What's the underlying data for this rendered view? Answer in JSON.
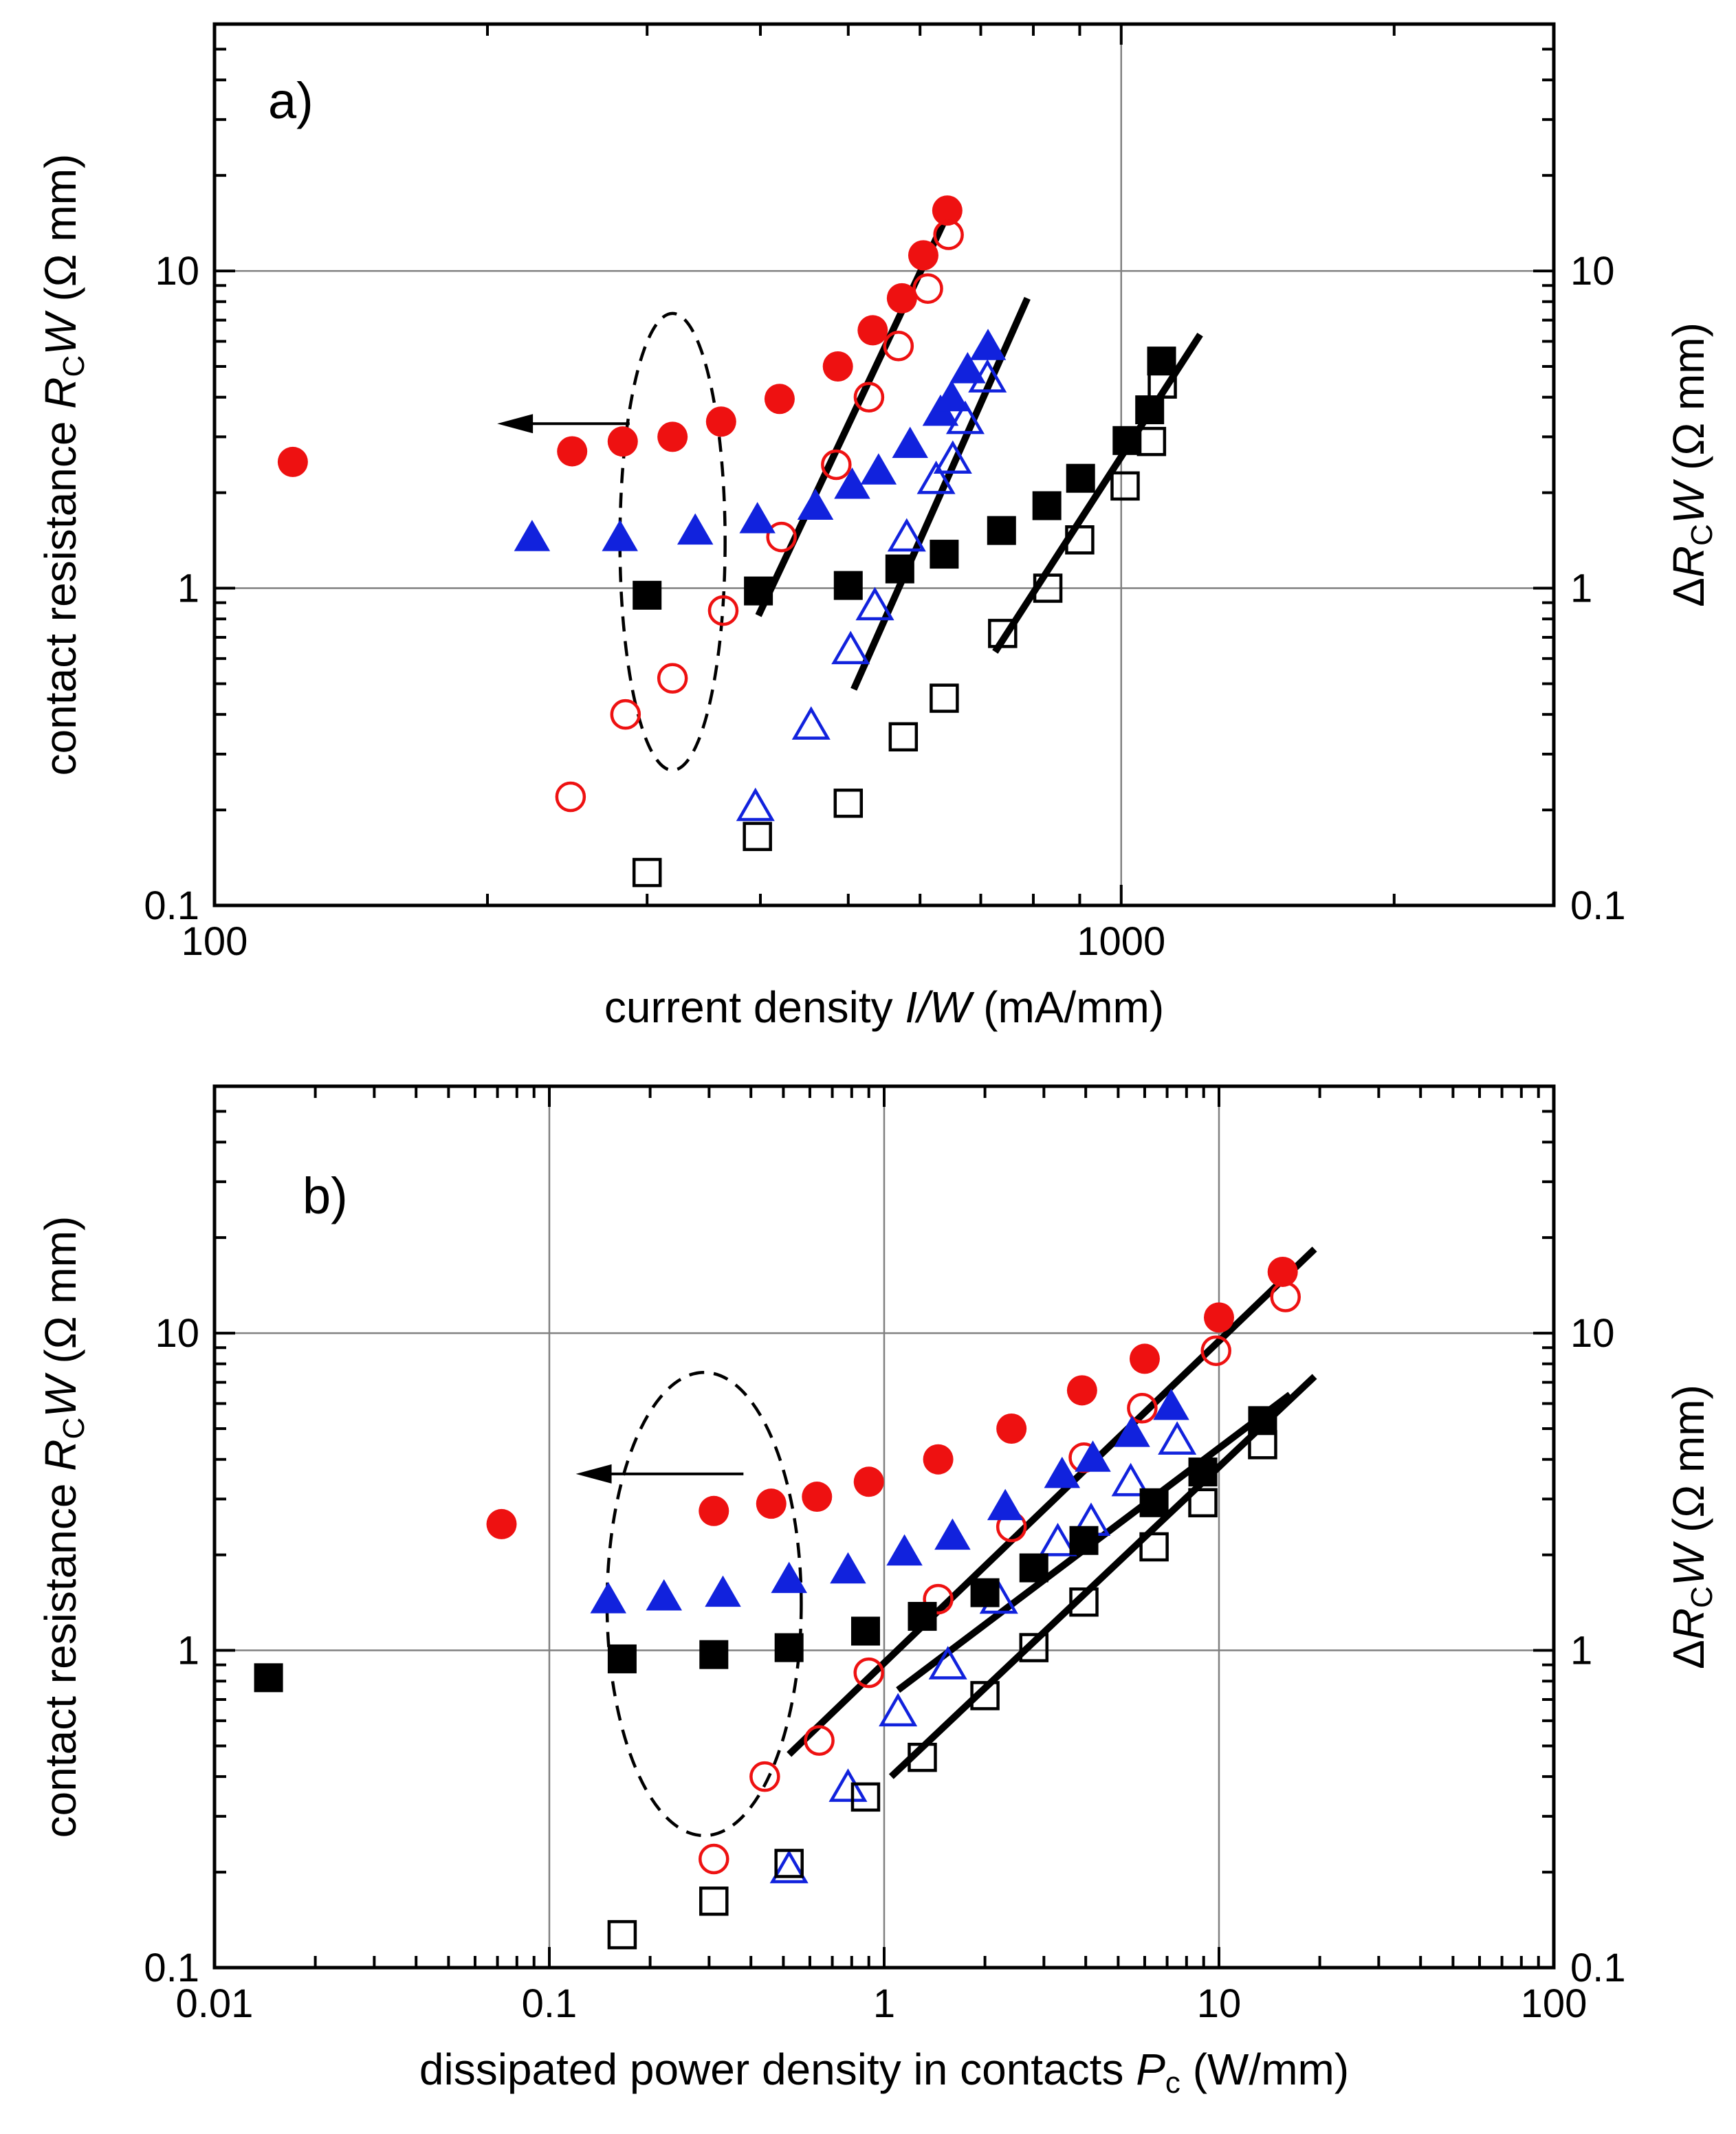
{
  "chart_data": [
    {
      "type": "scatter",
      "panel_label": "a)",
      "xscale": "log",
      "yscale": "log",
      "xlim": [
        100,
        3000
      ],
      "ylim": [
        0.1,
        60
      ],
      "x_ticks": [
        100,
        1000
      ],
      "x_tick_labels": [
        "100",
        "1000"
      ],
      "y_ticks": [
        0.1,
        1,
        10
      ],
      "y_tick_labels": [
        "0.1",
        "1",
        "10"
      ],
      "right_y_tick_labels": [
        "0.1",
        "1",
        "10"
      ],
      "grid": true,
      "xlabel": {
        "pre": "current density ",
        "italic": "I/W",
        "post": " (mA/mm)"
      },
      "ylabel": {
        "pre": "contact resistance ",
        "i1": "R",
        "sub": "C",
        "i2": "W",
        "post": " (Ω mm)"
      },
      "ylabel_right": {
        "pre": "Δ",
        "i1": "R",
        "sub": "C",
        "i2": "W",
        "post": " (Ω mm)"
      },
      "series": [
        {
          "name": "RcW red",
          "marker": "circle",
          "filled": true,
          "color": "#ee1111",
          "points": [
            [
              122,
              2.5
            ],
            [
              248,
              2.7
            ],
            [
              282,
              2.9
            ],
            [
              320,
              3.0
            ],
            [
              362,
              3.35
            ],
            [
              420,
              3.95
            ],
            [
              487,
              5.0
            ],
            [
              532,
              6.5
            ],
            [
              573,
              8.2
            ],
            [
              605,
              11.2
            ],
            [
              643,
              15.5
            ]
          ]
        },
        {
          "name": "ΔRcW red",
          "marker": "circle",
          "filled": false,
          "color": "#ee1111",
          "points": [
            [
              247,
              0.22
            ],
            [
              284,
              0.4
            ],
            [
              320,
              0.52
            ],
            [
              364,
              0.85
            ],
            [
              422,
              1.45
            ],
            [
              485,
              2.45
            ],
            [
              527,
              4.0
            ],
            [
              568,
              5.8
            ],
            [
              612,
              8.8
            ],
            [
              645,
              13.0
            ]
          ]
        },
        {
          "name": "RcW blue",
          "marker": "triangle",
          "filled": true,
          "color": "#1122dd",
          "points": [
            [
              224,
              1.45
            ],
            [
              280,
              1.45
            ],
            [
              339,
              1.52
            ],
            [
              397,
              1.65
            ],
            [
              460,
              1.82
            ],
            [
              505,
              2.12
            ],
            [
              540,
              2.35
            ],
            [
              585,
              2.85
            ],
            [
              632,
              3.6
            ],
            [
              650,
              4.0
            ],
            [
              677,
              4.9
            ],
            [
              713,
              5.8
            ]
          ]
        },
        {
          "name": "ΔRcW blue",
          "marker": "triangle",
          "filled": false,
          "color": "#1122dd",
          "points": [
            [
              395,
              0.205
            ],
            [
              455,
              0.37
            ],
            [
              503,
              0.64
            ],
            [
              535,
              0.88
            ],
            [
              580,
              1.45
            ],
            [
              625,
              2.2
            ],
            [
              652,
              2.55
            ],
            [
              673,
              3.4
            ],
            [
              712,
              4.6
            ]
          ]
        },
        {
          "name": "RcW black",
          "marker": "square",
          "filled": true,
          "color": "#000000",
          "points": [
            [
              300,
              0.95
            ],
            [
              398,
              0.98
            ],
            [
              500,
              1.02
            ],
            [
              570,
              1.15
            ],
            [
              638,
              1.28
            ],
            [
              738,
              1.52
            ],
            [
              828,
              1.82
            ],
            [
              902,
              2.22
            ],
            [
              1015,
              2.92
            ],
            [
              1075,
              3.65
            ],
            [
              1108,
              5.2
            ]
          ]
        },
        {
          "name": "ΔRcW black",
          "marker": "square",
          "filled": false,
          "color": "#000000",
          "points": [
            [
              300,
              0.127
            ],
            [
              397,
              0.165
            ],
            [
              500,
              0.21
            ],
            [
              575,
              0.34
            ],
            [
              638,
              0.45
            ],
            [
              740,
              0.72
            ],
            [
              830,
              1.0
            ],
            [
              900,
              1.42
            ],
            [
              1010,
              2.1
            ],
            [
              1080,
              2.9
            ],
            [
              1110,
              4.4
            ]
          ]
        }
      ],
      "fit_lines": [
        {
          "x": [
            398,
            651
          ],
          "y": [
            0.82,
            16.2
          ]
        },
        {
          "x": [
            507,
            788
          ],
          "y": [
            0.48,
            8.2
          ]
        },
        {
          "x": [
            726,
            1222
          ],
          "y": [
            0.63,
            6.3
          ]
        }
      ],
      "annotations": [
        {
          "type": "ellipse",
          "cx": 320,
          "cy": 1.4,
          "rx_decades": 0.058,
          "ry_decades": 0.72,
          "style": "dashed"
        },
        {
          "type": "arrow",
          "from": [
            287,
            3.3
          ],
          "to": [
            205,
            3.3
          ],
          "meaning": "left axis"
        }
      ]
    },
    {
      "type": "scatter",
      "panel_label": "b)",
      "xscale": "log",
      "yscale": "log",
      "xlim": [
        0.01,
        100
      ],
      "ylim": [
        0.1,
        60
      ],
      "x_ticks": [
        0.01,
        0.1,
        1,
        10,
        100
      ],
      "x_tick_labels": [
        "0.01",
        "0.1",
        "1",
        "10",
        "100"
      ],
      "y_ticks": [
        0.1,
        1,
        10
      ],
      "y_tick_labels": [
        "0.1",
        "1",
        "10"
      ],
      "right_y_tick_labels": [
        "0.1",
        "1",
        "10"
      ],
      "grid": true,
      "xlabel": {
        "pre": "dissipated power density in contacts ",
        "italic": "P",
        "sub": "c",
        "post": " (W/mm)"
      },
      "ylabel": {
        "pre": "contact resistance ",
        "i1": "R",
        "sub": "C",
        "i2": "W",
        "post": " (Ω mm)"
      },
      "ylabel_right": {
        "pre": "Δ",
        "i1": "R",
        "sub": "C",
        "i2": "W",
        "post": " (Ω mm)"
      },
      "series": [
        {
          "name": "RcW red",
          "marker": "circle",
          "filled": true,
          "color": "#ee1111",
          "points": [
            [
              0.072,
              2.5
            ],
            [
              0.31,
              2.75
            ],
            [
              0.46,
              2.9
            ],
            [
              0.63,
              3.05
            ],
            [
              0.9,
              3.4
            ],
            [
              1.45,
              4.0
            ],
            [
              2.4,
              5.0
            ],
            [
              3.9,
              6.6
            ],
            [
              6.0,
              8.3
            ],
            [
              10.0,
              11.2
            ],
            [
              15.5,
              15.6
            ]
          ]
        },
        {
          "name": "ΔRcW red",
          "marker": "circle",
          "filled": false,
          "color": "#ee1111",
          "points": [
            [
              0.31,
              0.22
            ],
            [
              0.44,
              0.4
            ],
            [
              0.64,
              0.52
            ],
            [
              0.9,
              0.85
            ],
            [
              1.45,
              1.45
            ],
            [
              2.4,
              2.45
            ],
            [
              3.95,
              4.05
            ],
            [
              5.9,
              5.8
            ],
            [
              9.8,
              8.8
            ],
            [
              15.8,
              13.0
            ]
          ]
        },
        {
          "name": "RcW blue",
          "marker": "triangle",
          "filled": true,
          "color": "#1122dd",
          "points": [
            [
              0.15,
              1.45
            ],
            [
              0.22,
              1.48
            ],
            [
              0.33,
              1.52
            ],
            [
              0.52,
              1.68
            ],
            [
              0.78,
              1.8
            ],
            [
              1.15,
              2.05
            ],
            [
              1.6,
              2.3
            ],
            [
              2.3,
              2.85
            ],
            [
              3.4,
              3.6
            ],
            [
              4.2,
              4.05
            ],
            [
              5.5,
              4.85
            ],
            [
              7.2,
              5.9
            ]
          ]
        },
        {
          "name": "ΔRcW blue",
          "marker": "triangle",
          "filled": false,
          "color": "#1122dd",
          "points": [
            [
              0.52,
              0.205
            ],
            [
              0.78,
              0.37
            ],
            [
              1.1,
              0.64
            ],
            [
              1.55,
              0.9
            ],
            [
              2.2,
              1.45
            ],
            [
              3.3,
              2.2
            ],
            [
              4.15,
              2.55
            ],
            [
              5.45,
              3.4
            ],
            [
              7.5,
              4.6
            ]
          ]
        },
        {
          "name": "RcW black",
          "marker": "square",
          "filled": true,
          "color": "#000000",
          "points": [
            [
              0.0145,
              0.82
            ],
            [
              0.165,
              0.94
            ],
            [
              0.31,
              0.97
            ],
            [
              0.52,
              1.02
            ],
            [
              0.88,
              1.15
            ],
            [
              1.3,
              1.28
            ],
            [
              2.0,
              1.52
            ],
            [
              2.8,
              1.82
            ],
            [
              3.95,
              2.22
            ],
            [
              6.4,
              2.92
            ],
            [
              8.95,
              3.65
            ],
            [
              13.5,
              5.3
            ]
          ]
        },
        {
          "name": "ΔRcW black",
          "marker": "square",
          "filled": false,
          "color": "#000000",
          "points": [
            [
              0.165,
              0.127
            ],
            [
              0.31,
              0.162
            ],
            [
              0.52,
              0.213
            ],
            [
              0.88,
              0.345
            ],
            [
              1.3,
              0.46
            ],
            [
              2.0,
              0.72
            ],
            [
              2.8,
              1.02
            ],
            [
              3.95,
              1.42
            ],
            [
              6.4,
              2.12
            ],
            [
              8.95,
              2.92
            ],
            [
              13.5,
              4.45
            ]
          ]
        }
      ],
      "fit_lines": [
        {
          "x": [
            0.52,
            19.3
          ],
          "y": [
            0.47,
            18.4
          ]
        },
        {
          "x": [
            1.1,
            16.3
          ],
          "y": [
            0.75,
            6.4
          ]
        },
        {
          "x": [
            1.05,
            19.3
          ],
          "y": [
            0.4,
            7.3
          ]
        }
      ],
      "annotations": [
        {
          "type": "ellipse",
          "cx": 0.29,
          "cy": 1.4,
          "rx_decades": 0.29,
          "ry_decades": 0.73,
          "style": "dashed"
        },
        {
          "type": "arrow",
          "from": [
            0.38,
            3.6
          ],
          "to": [
            0.12,
            3.6
          ],
          "meaning": "left axis"
        }
      ]
    }
  ]
}
